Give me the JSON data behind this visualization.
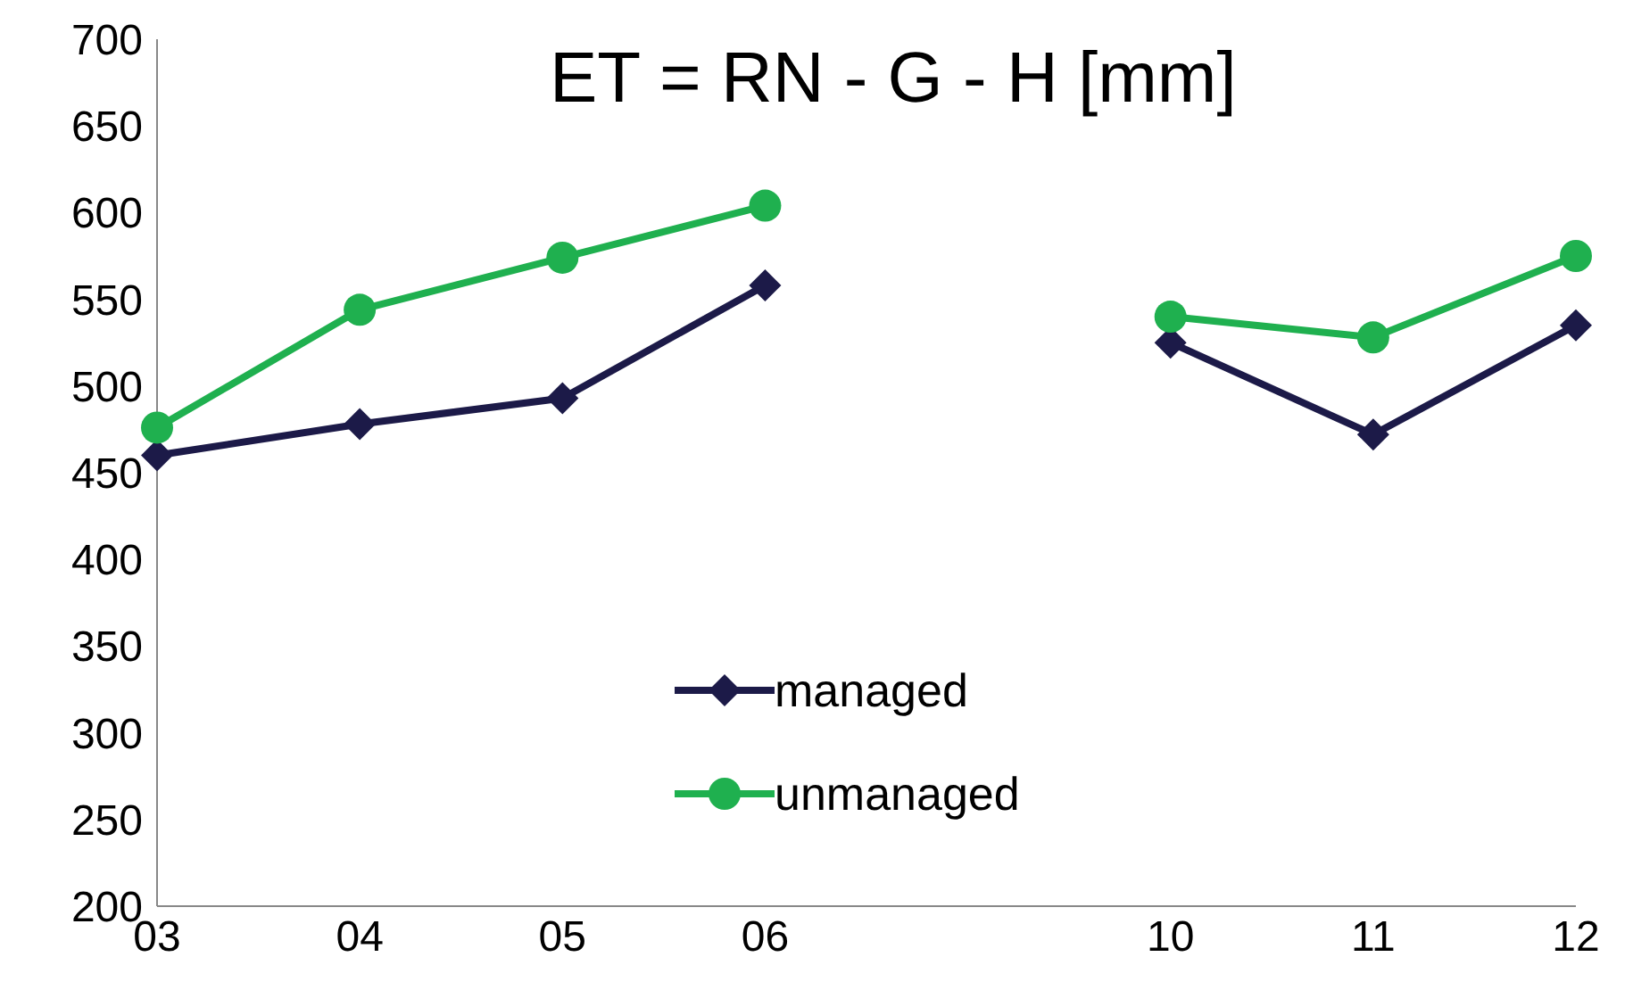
{
  "chart_data": {
    "type": "line",
    "title": "ET = RN - G - H [mm]",
    "categories": [
      "03",
      "04",
      "05",
      "06",
      null,
      "10",
      "11",
      "12"
    ],
    "series": [
      {
        "name": "managed",
        "color": "#1c1a48",
        "marker": "diamond",
        "values": [
          460,
          478,
          493,
          558,
          null,
          525,
          472,
          535
        ]
      },
      {
        "name": "unmanaged",
        "color": "#1fb04f",
        "marker": "circle",
        "values": [
          476,
          544,
          574,
          604,
          null,
          540,
          528,
          575
        ]
      }
    ],
    "ylim": [
      200,
      700
    ],
    "yticks": [
      200,
      250,
      300,
      350,
      400,
      450,
      500,
      550,
      600,
      650,
      700
    ],
    "legend": "bottom"
  }
}
